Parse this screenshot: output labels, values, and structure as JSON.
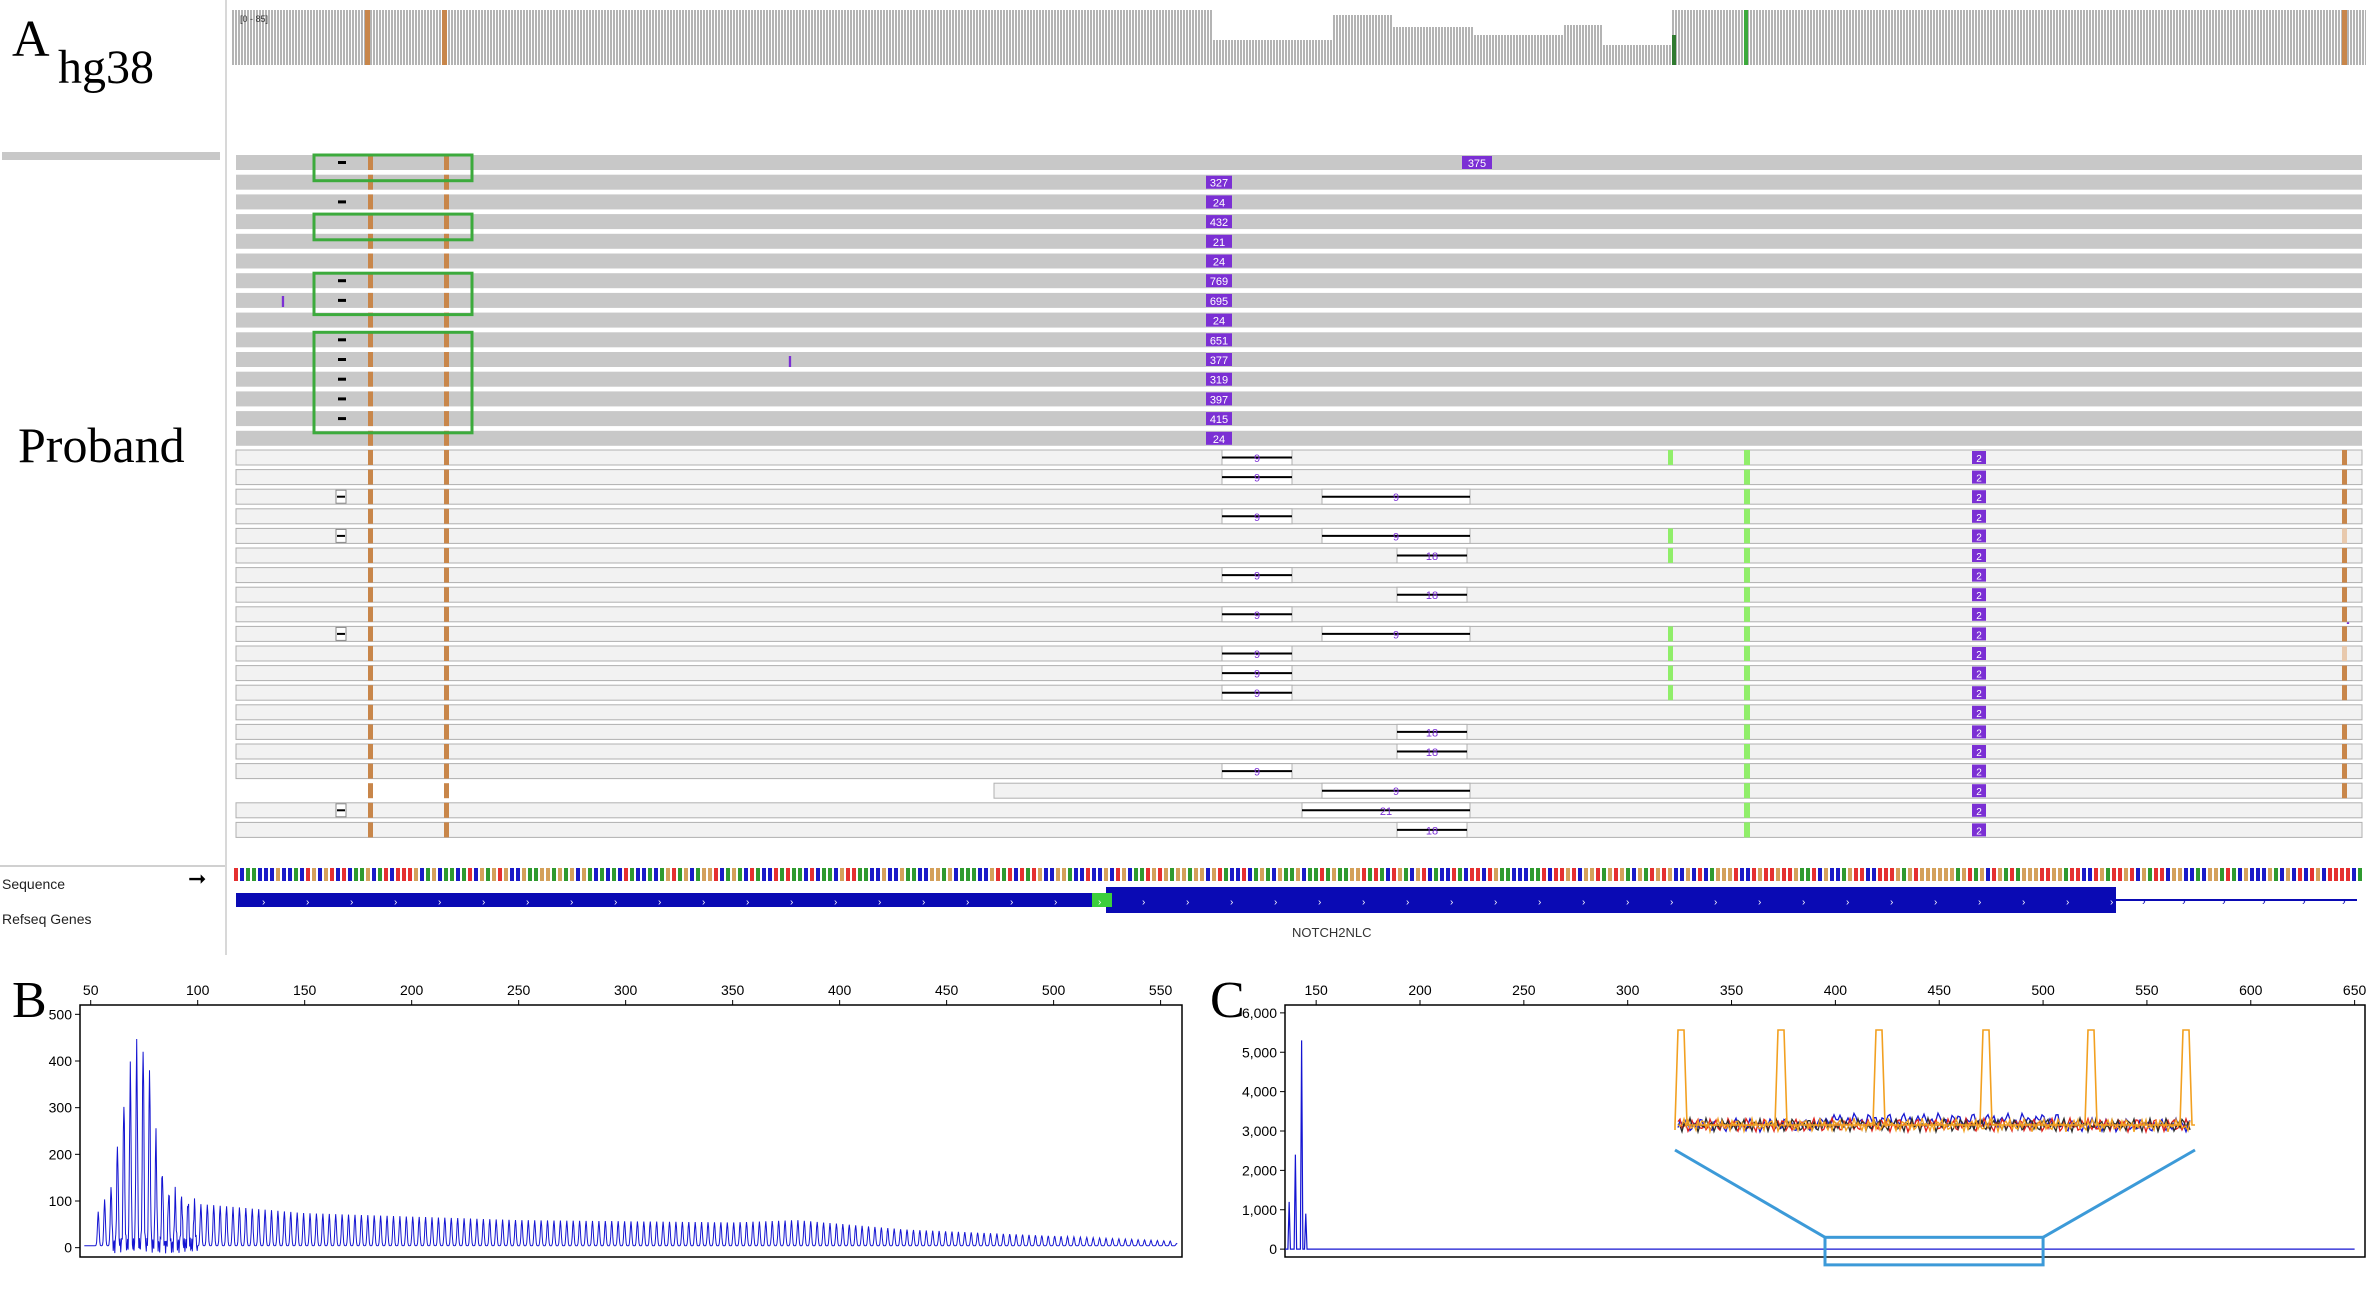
{
  "panels": {
    "a": {
      "letter": "A",
      "genome": "hg38",
      "sample": "Proband"
    },
    "b": {
      "letter": "B"
    },
    "c": {
      "letter": "C"
    }
  },
  "igv": {
    "coverage_range": "[0 - 85]",
    "tracks": {
      "sequence": "Sequence",
      "refseq": "Refseq Genes"
    },
    "gene": "NOTCH2NLC",
    "colors": {
      "insertion": "#7b2fd4",
      "mismatch_brown": "#c8864a",
      "mismatch_green": "#90ee6a",
      "gene": "#0a0ab4",
      "read": "#c8c8c8",
      "read_light": "#f2f2f2",
      "box": "#3caa3c"
    },
    "gray_reads": [
      {
        "ins": "375",
        "ins2": ""
      },
      {
        "ins": "",
        "ins2": "327"
      },
      {
        "ins": "",
        "ins2": "24"
      },
      {
        "ins": "",
        "ins2": "432"
      },
      {
        "ins": "",
        "ins2": "21"
      },
      {
        "ins": "",
        "ins2": "24"
      },
      {
        "ins": "",
        "ins2": "769"
      },
      {
        "ins": "",
        "ins2": "695"
      },
      {
        "ins": "",
        "ins2": "24"
      },
      {
        "ins": "",
        "ins2": "651"
      },
      {
        "ins": "",
        "ins2": "377"
      },
      {
        "ins": "",
        "ins2": "319"
      },
      {
        "ins": "",
        "ins2": "397"
      },
      {
        "ins": "",
        "ins2": "415"
      },
      {
        "ins": "",
        "ins2": "24"
      }
    ],
    "white_reads": [
      {
        "del": "9",
        "dpos": 0
      },
      {
        "del": "9",
        "dpos": 0
      },
      {
        "del": "9",
        "dpos": 2
      },
      {
        "del": "9",
        "dpos": 0
      },
      {
        "del": "9",
        "dpos": 2
      },
      {
        "del": "18",
        "dpos": 1
      },
      {
        "del": "9",
        "dpos": 0
      },
      {
        "del": "18",
        "dpos": 1
      },
      {
        "del": "9",
        "dpos": 0
      },
      {
        "del": "9",
        "dpos": 2
      },
      {
        "del": "9",
        "dpos": 0
      },
      {
        "del": "9",
        "dpos": 0
      },
      {
        "del": "9",
        "dpos": 0
      },
      {
        "del": "",
        "dpos": 0
      },
      {
        "del": "18",
        "dpos": 1
      },
      {
        "del": "18",
        "dpos": 1
      },
      {
        "del": "9",
        "dpos": 0
      },
      {
        "del": "9",
        "dpos": 2
      },
      {
        "del": "21",
        "dpos": 3
      },
      {
        "del": "18",
        "dpos": 1
      }
    ],
    "repeat_ins_label": "2",
    "box_ins_label": "I"
  },
  "chart_data": [
    {
      "type": "line",
      "panel": "B",
      "xticks": [
        50,
        100,
        150,
        200,
        250,
        300,
        350,
        400,
        450,
        500,
        550
      ],
      "yticks": [
        0,
        100,
        200,
        300,
        400,
        500
      ],
      "xlim": [
        45,
        560
      ],
      "ylim": [
        -20,
        520
      ],
      "peaks": {
        "start": 52,
        "spacing": 3,
        "envelope": [
          [
            52,
            60
          ],
          [
            60,
            130
          ],
          [
            65,
            300
          ],
          [
            70,
            420
          ],
          [
            73,
            450
          ],
          [
            77,
            400
          ],
          [
            80,
            250
          ],
          [
            85,
            120
          ],
          [
            100,
            90
          ],
          [
            150,
            70
          ],
          [
            250,
            55
          ],
          [
            350,
            50
          ],
          [
            380,
            55
          ],
          [
            430,
            35
          ],
          [
            480,
            25
          ],
          [
            555,
            10
          ]
        ]
      }
    },
    {
      "type": "line",
      "panel": "C",
      "xticks": [
        150,
        200,
        250,
        300,
        350,
        400,
        450,
        500,
        550,
        600,
        650
      ],
      "yticks": [
        "0",
        "1,000",
        "2,000",
        "3,000",
        "4,000",
        "5,000",
        "6,000"
      ],
      "xlim": [
        135,
        655
      ],
      "ylim": [
        -200,
        6200
      ],
      "peaks": [
        [
          137,
          1200
        ],
        [
          140,
          2400
        ],
        [
          143,
          5300
        ],
        [
          145,
          900
        ]
      ],
      "inset_region": [
        395,
        500
      ]
    }
  ]
}
